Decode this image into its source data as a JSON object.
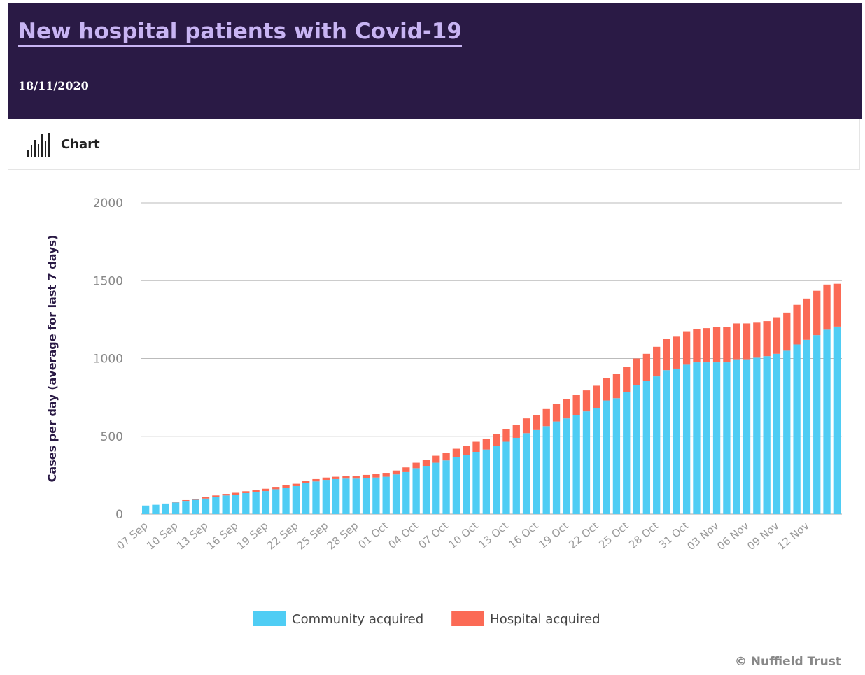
{
  "header": {
    "title": "New hospital patients with Covid-19",
    "date": "18/11/2020"
  },
  "tab": {
    "label": "Chart"
  },
  "chart_data": {
    "type": "bar",
    "stacked": true,
    "ylabel": "Cases per day (average for last 7 days)",
    "categories": [
      "07 Sep",
      null,
      null,
      "10 Sep",
      null,
      null,
      "13 Sep",
      null,
      null,
      "16 Sep",
      null,
      null,
      "19 Sep",
      null,
      null,
      "22 Sep",
      null,
      null,
      "25 Sep",
      null,
      null,
      "28 Sep",
      null,
      null,
      "01 Oct",
      null,
      null,
      "04 Oct",
      null,
      null,
      "07 Oct",
      null,
      null,
      "10 Oct",
      null,
      null,
      "13 Oct",
      null,
      null,
      "16 Oct",
      null,
      null,
      "19 Oct",
      null,
      null,
      "22 Oct",
      null,
      null,
      "25 Oct",
      null,
      null,
      "28 Oct",
      null,
      null,
      "31 Oct",
      null,
      null,
      "03 Nov",
      null,
      null,
      "06 Nov",
      null,
      null,
      "09 Nov",
      null,
      null,
      "12 Nov",
      null,
      null,
      null
    ],
    "series": [
      {
        "name": "Community acquired",
        "color": "#4fcdf4",
        "values": [
          55,
          60,
          68,
          75,
          85,
          92,
          100,
          110,
          120,
          125,
          135,
          140,
          148,
          160,
          170,
          180,
          200,
          210,
          220,
          225,
          228,
          228,
          232,
          235,
          240,
          255,
          270,
          295,
          310,
          330,
          345,
          365,
          380,
          400,
          415,
          440,
          465,
          490,
          520,
          540,
          565,
          595,
          615,
          635,
          660,
          680,
          730,
          745,
          785,
          830,
          855,
          885,
          925,
          935,
          960,
          975,
          975,
          975,
          975,
          995,
          995,
          1005,
          1015,
          1030,
          1050,
          1090,
          1120,
          1150,
          1185,
          1205
        ]
      },
      {
        "name": "Hospital acquired",
        "color": "#fb6a55",
        "values": [
          0,
          0,
          0,
          2,
          5,
          5,
          8,
          10,
          10,
          12,
          12,
          15,
          15,
          15,
          15,
          15,
          15,
          15,
          15,
          15,
          15,
          15,
          20,
          22,
          25,
          25,
          30,
          35,
          40,
          45,
          50,
          55,
          60,
          65,
          70,
          75,
          80,
          85,
          95,
          95,
          110,
          115,
          125,
          130,
          135,
          145,
          145,
          155,
          160,
          170,
          175,
          190,
          200,
          205,
          215,
          215,
          220,
          225,
          225,
          230,
          230,
          225,
          225,
          235,
          245,
          255,
          265,
          285,
          290,
          275
        ]
      }
    ],
    "ylim": [
      0,
      2000
    ],
    "yticks": [
      0,
      500,
      1000,
      1500,
      2000
    ],
    "grid": true,
    "legend": "bottom",
    "credit": "© Nuffield Trust"
  }
}
